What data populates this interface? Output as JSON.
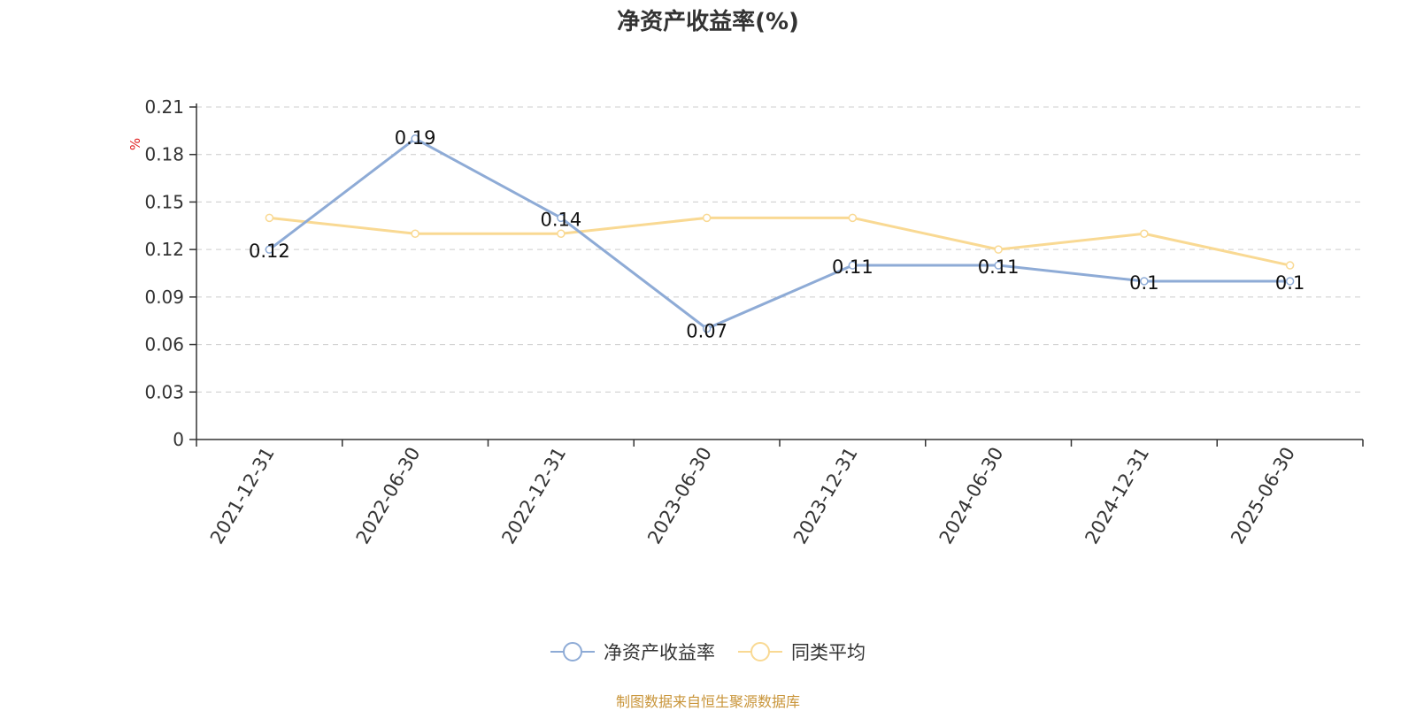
{
  "chart_data": {
    "type": "line",
    "title": "净资产收益率(%)",
    "ylabel": "%",
    "xlabel": "",
    "ylim": [
      0,
      0.21
    ],
    "yticks": [
      "0",
      "0.03",
      "0.06",
      "0.09",
      "0.12",
      "0.15",
      "0.18",
      "0.21"
    ],
    "categories": [
      "2021-12-31",
      "2022-06-30",
      "2022-12-31",
      "2023-06-30",
      "2023-12-31",
      "2024-06-30",
      "2024-12-31",
      "2025-06-30"
    ],
    "grid": true,
    "legend_position": "bottom-center",
    "series": [
      {
        "name": "净资产收益率",
        "color": "#8eabd6",
        "values": [
          0.12,
          0.19,
          0.14,
          0.07,
          0.11,
          0.11,
          0.1,
          0.1
        ],
        "labels": [
          "0.12",
          "0.19",
          "0.14",
          "0.07",
          "0.11",
          "0.11",
          "0.1",
          "0.1"
        ]
      },
      {
        "name": "同类平均",
        "color": "#f9d993",
        "values": [
          0.14,
          0.13,
          0.13,
          0.14,
          0.14,
          0.12,
          0.13,
          0.11
        ]
      }
    ]
  },
  "source_note": "制图数据来自恒生聚源数据库"
}
